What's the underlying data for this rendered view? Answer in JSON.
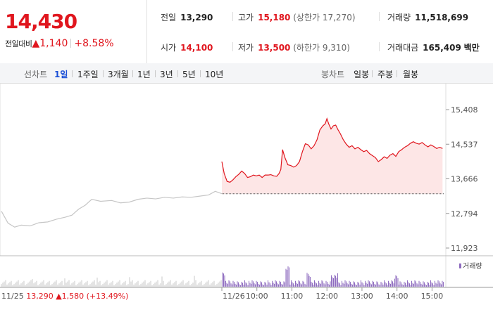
{
  "summary": {
    "price": "14,430",
    "change_label": "전일대비",
    "change_arrow": "▲",
    "change_value": "1,140",
    "change_rate": "+8.58%",
    "prev_close": {
      "label": "전일",
      "value": "13,290"
    },
    "open": {
      "label": "시가",
      "value": "14,100"
    },
    "high": {
      "label": "고가",
      "value": "15,180",
      "limit": "(상한가 17,270)"
    },
    "low": {
      "label": "저가",
      "value": "13,500",
      "limit": "(하한가 9,310)"
    },
    "volume": {
      "label": "거래량",
      "value": "11,518,699"
    },
    "trade_value": {
      "label": "거래대금",
      "value": "165,409",
      "unit": "백만"
    }
  },
  "toolbar": {
    "line_label": "선차트",
    "line_periods": [
      "1일",
      "1주일",
      "3개월",
      "1년",
      "3년",
      "5년",
      "10년"
    ],
    "active_period": "1일",
    "candle_label": "봉차트",
    "candle_periods": [
      "일봉",
      "주봉",
      "월봉"
    ]
  },
  "colors": {
    "up": "#e0161e",
    "down": "#1a4fd6",
    "volume_today": "#8e6bbf",
    "volume_prev": "#c8c8c8"
  },
  "chart_data": {
    "type": "line",
    "y_ticks": [
      "15,408",
      "14,537",
      "13,666",
      "12,794",
      "11,923"
    ],
    "ylim": [
      11923,
      15408
    ],
    "baseline": 13290,
    "x_ticks": [
      "11/26",
      "10:00",
      "11:00",
      "12:00",
      "13:00",
      "14:00",
      "15:00"
    ],
    "volume_legend": "거래량",
    "prev_day_label": "11/25",
    "prev_day_close": "13,290",
    "prev_day_change": "▲1,580 (+13.49%)",
    "prev_day_series": [
      {
        "t": 0.0,
        "v": 12850
      },
      {
        "t": 0.03,
        "v": 12550
      },
      {
        "t": 0.06,
        "v": 12450
      },
      {
        "t": 0.09,
        "v": 12500
      },
      {
        "t": 0.13,
        "v": 12480
      },
      {
        "t": 0.17,
        "v": 12560
      },
      {
        "t": 0.21,
        "v": 12580
      },
      {
        "t": 0.25,
        "v": 12650
      },
      {
        "t": 0.29,
        "v": 12700
      },
      {
        "t": 0.32,
        "v": 12750
      },
      {
        "t": 0.35,
        "v": 12900
      },
      {
        "t": 0.38,
        "v": 13000
      },
      {
        "t": 0.41,
        "v": 13150
      },
      {
        "t": 0.45,
        "v": 13100
      },
      {
        "t": 0.5,
        "v": 13120
      },
      {
        "t": 0.54,
        "v": 13060
      },
      {
        "t": 0.58,
        "v": 13080
      },
      {
        "t": 0.62,
        "v": 13150
      },
      {
        "t": 0.66,
        "v": 13180
      },
      {
        "t": 0.7,
        "v": 13160
      },
      {
        "t": 0.74,
        "v": 13200
      },
      {
        "t": 0.78,
        "v": 13180
      },
      {
        "t": 0.82,
        "v": 13210
      },
      {
        "t": 0.86,
        "v": 13200
      },
      {
        "t": 0.9,
        "v": 13230
      },
      {
        "t": 0.94,
        "v": 13260
      },
      {
        "t": 0.97,
        "v": 13350
      },
      {
        "t": 1.0,
        "v": 13290
      }
    ],
    "today_series": [
      {
        "time": "09:00",
        "v": 14100
      },
      {
        "time": "09:04",
        "v": 13800
      },
      {
        "time": "09:09",
        "v": 13600
      },
      {
        "time": "09:14",
        "v": 13580
      },
      {
        "time": "09:19",
        "v": 13640
      },
      {
        "time": "09:24",
        "v": 13720
      },
      {
        "time": "09:29",
        "v": 13780
      },
      {
        "time": "09:34",
        "v": 13860
      },
      {
        "time": "09:39",
        "v": 13800
      },
      {
        "time": "09:44",
        "v": 13700
      },
      {
        "time": "09:49",
        "v": 13720
      },
      {
        "time": "09:54",
        "v": 13760
      },
      {
        "time": "09:59",
        "v": 13740
      },
      {
        "time": "10:04",
        "v": 13760
      },
      {
        "time": "10:09",
        "v": 13700
      },
      {
        "time": "10:14",
        "v": 13760
      },
      {
        "time": "10:19",
        "v": 13760
      },
      {
        "time": "10:24",
        "v": 13770
      },
      {
        "time": "10:29",
        "v": 13740
      },
      {
        "time": "10:34",
        "v": 13730
      },
      {
        "time": "10:38",
        "v": 13800
      },
      {
        "time": "10:41",
        "v": 13900
      },
      {
        "time": "10:44",
        "v": 14400
      },
      {
        "time": "10:48",
        "v": 14200
      },
      {
        "time": "10:53",
        "v": 14020
      },
      {
        "time": "10:58",
        "v": 14000
      },
      {
        "time": "11:03",
        "v": 13960
      },
      {
        "time": "11:08",
        "v": 14000
      },
      {
        "time": "11:13",
        "v": 14100
      },
      {
        "time": "11:18",
        "v": 14350
      },
      {
        "time": "11:23",
        "v": 14550
      },
      {
        "time": "11:28",
        "v": 14520
      },
      {
        "time": "11:33",
        "v": 14420
      },
      {
        "time": "11:38",
        "v": 14500
      },
      {
        "time": "11:43",
        "v": 14650
      },
      {
        "time": "11:48",
        "v": 14900
      },
      {
        "time": "11:53",
        "v": 15000
      },
      {
        "time": "11:57",
        "v": 15050
      },
      {
        "time": "12:00",
        "v": 15180
      },
      {
        "time": "12:03",
        "v": 15050
      },
      {
        "time": "12:07",
        "v": 14920
      },
      {
        "time": "12:11",
        "v": 15000
      },
      {
        "time": "12:15",
        "v": 15020
      },
      {
        "time": "12:19",
        "v": 14900
      },
      {
        "time": "12:23",
        "v": 14800
      },
      {
        "time": "12:28",
        "v": 14650
      },
      {
        "time": "12:33",
        "v": 14540
      },
      {
        "time": "12:38",
        "v": 14460
      },
      {
        "time": "12:43",
        "v": 14500
      },
      {
        "time": "12:48",
        "v": 14420
      },
      {
        "time": "12:53",
        "v": 14460
      },
      {
        "time": "12:58",
        "v": 14400
      },
      {
        "time": "13:03",
        "v": 14350
      },
      {
        "time": "13:08",
        "v": 14380
      },
      {
        "time": "13:13",
        "v": 14300
      },
      {
        "time": "13:18",
        "v": 14250
      },
      {
        "time": "13:23",
        "v": 14200
      },
      {
        "time": "13:28",
        "v": 14100
      },
      {
        "time": "13:33",
        "v": 14150
      },
      {
        "time": "13:38",
        "v": 14220
      },
      {
        "time": "13:43",
        "v": 14180
      },
      {
        "time": "13:48",
        "v": 14260
      },
      {
        "time": "13:53",
        "v": 14300
      },
      {
        "time": "13:58",
        "v": 14230
      },
      {
        "time": "14:03",
        "v": 14350
      },
      {
        "time": "14:08",
        "v": 14400
      },
      {
        "time": "14:13",
        "v": 14460
      },
      {
        "time": "14:18",
        "v": 14500
      },
      {
        "time": "14:23",
        "v": 14560
      },
      {
        "time": "14:28",
        "v": 14600
      },
      {
        "time": "14:33",
        "v": 14560
      },
      {
        "time": "14:38",
        "v": 14540
      },
      {
        "time": "14:43",
        "v": 14580
      },
      {
        "time": "14:48",
        "v": 14520
      },
      {
        "time": "14:53",
        "v": 14470
      },
      {
        "time": "14:58",
        "v": 14520
      },
      {
        "time": "15:03",
        "v": 14480
      },
      {
        "time": "15:08",
        "v": 14430
      },
      {
        "time": "15:13",
        "v": 14460
      },
      {
        "time": "15:18",
        "v": 14430
      }
    ]
  }
}
